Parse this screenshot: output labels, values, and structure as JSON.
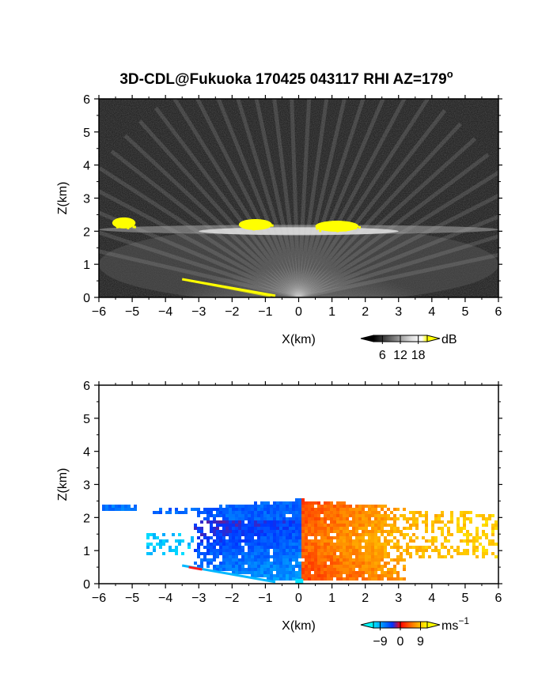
{
  "title": "3D-CDL@Fukuoka 170425 043117 RHI AZ=179",
  "title_superscript": "o",
  "chart_data": [
    {
      "type": "heatmap",
      "panel": "top",
      "variable": "backscatter intensity",
      "xlabel": "X(km)",
      "ylabel": "Z(km)",
      "xlim": [
        -6,
        6
      ],
      "ylim": [
        0,
        6
      ],
      "xticks": [
        "-6",
        "-5",
        "-4",
        "-3",
        "-2",
        "-1",
        "0",
        "1",
        "2",
        "3",
        "4",
        "5",
        "6"
      ],
      "yticks": [
        "0",
        "1",
        "2",
        "3",
        "4",
        "5",
        "6"
      ],
      "background": "noise (dark grey)",
      "colorbar": {
        "unit": "dB",
        "ticks": [
          "6",
          "12",
          "18"
        ],
        "range": [
          3,
          21
        ],
        "colors": [
          "#000000",
          "#ffffff",
          "#ffff00"
        ]
      },
      "features": [
        {
          "label": "cloud base (yellow)",
          "x": [
            -5.6,
            -4.9
          ],
          "z": 2.25
        },
        {
          "label": "cloud base (yellow)",
          "x": [
            -1.8,
            -0.8
          ],
          "z": 2.2
        },
        {
          "label": "cloud base (yellow)",
          "x": [
            0.5,
            1.8
          ],
          "z": 2.15
        },
        {
          "label": "near-ground (yellow)",
          "x": [
            -3.5,
            -0.7
          ],
          "z": [
            0.55,
            0.05
          ]
        },
        {
          "label": "bright layer",
          "x": [
            -6,
            6
          ],
          "z": [
            1.8,
            2.2
          ]
        }
      ]
    },
    {
      "type": "heatmap",
      "panel": "bottom",
      "variable": "radial (Doppler) velocity",
      "xlabel": "X(km)",
      "ylabel": "Z(km)",
      "xlim": [
        -6,
        6
      ],
      "ylim": [
        0,
        6
      ],
      "xticks": [
        "-6",
        "-5",
        "-4",
        "-3",
        "-2",
        "-1",
        "0",
        "1",
        "2",
        "3",
        "4",
        "5",
        "6"
      ],
      "yticks": [
        "0",
        "1",
        "2",
        "3",
        "4",
        "5",
        "6"
      ],
      "colorbar": {
        "unit": "ms",
        "unit_superscript": "-1",
        "ticks": [
          "-9",
          "0",
          "9"
        ],
        "range": [
          -12,
          12
        ],
        "colors": [
          "#00ffff",
          "#0044ff",
          "#ff0000",
          "#ffff00"
        ]
      },
      "regions": [
        {
          "label": "negative velocity (blue)",
          "x": [
            -3,
            0
          ],
          "z": [
            0.2,
            2.5
          ],
          "v": -6
        },
        {
          "label": "negative velocity (cyan)",
          "x": [
            -4.6,
            -1.2
          ],
          "z": [
            0.8,
            1.4
          ],
          "v": -10
        },
        {
          "label": "negative velocity (blue)",
          "x": [
            -6,
            -4.9
          ],
          "z": [
            2.2,
            2.35
          ],
          "v": -7
        },
        {
          "label": "positive velocity (red/orange)",
          "x": [
            0,
            3
          ],
          "z": [
            0.2,
            2.5
          ],
          "v": 4
        },
        {
          "label": "positive velocity (yellow/orange)",
          "x": [
            2,
            6
          ],
          "z": [
            0.8,
            2.3
          ],
          "v": 9
        }
      ]
    }
  ]
}
